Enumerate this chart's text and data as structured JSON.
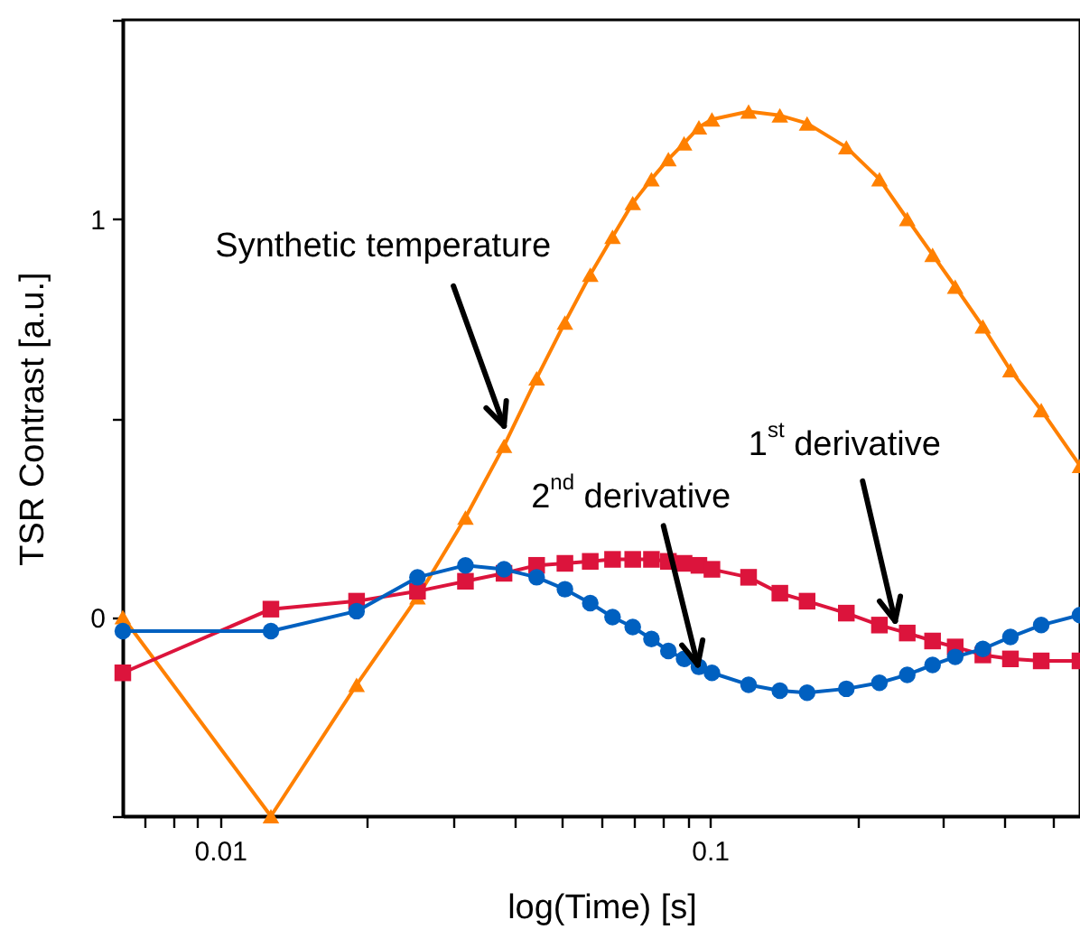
{
  "chart_data": {
    "type": "line",
    "xlabel": "log(Time) [s]",
    "ylabel": "TSR Contrast [a.u.]",
    "log": "x",
    "grid": false,
    "xlim": [
      0.00633,
      0.57
    ],
    "ylim": [
      -0.5,
      1.5
    ],
    "xticks": [
      {
        "value": 0.007,
        "label": null
      },
      {
        "value": 0.008,
        "label": null
      },
      {
        "value": 0.009,
        "label": null
      },
      0.01,
      {
        "value": 0.02,
        "label": null
      },
      {
        "value": 0.03,
        "label": null
      },
      {
        "value": 0.04,
        "label": null
      },
      {
        "value": 0.05,
        "label": null
      },
      {
        "value": 0.06,
        "label": null
      },
      {
        "value": 0.07,
        "label": null
      },
      {
        "value": 0.08,
        "label": null
      },
      {
        "value": 0.09,
        "label": null
      },
      0.1,
      {
        "value": 0.2,
        "label": null
      },
      {
        "value": 0.3,
        "label": null
      },
      {
        "value": 0.4,
        "label": null
      },
      {
        "value": 0.5,
        "label": null
      }
    ],
    "yticks": [
      {
        "value": -0.5,
        "label": null
      },
      0,
      {
        "value": 0.5,
        "label": null
      },
      1,
      {
        "value": 1.5,
        "label": null
      }
    ],
    "x": [
      0.00633,
      0.0127,
      0.019,
      0.0253,
      0.0317,
      0.038,
      0.0443,
      0.0506,
      0.057,
      0.0633,
      0.0696,
      0.076,
      0.0823,
      0.0886,
      0.095,
      0.101,
      0.12,
      0.139,
      0.158,
      0.19,
      0.222,
      0.253,
      0.285,
      0.317,
      0.361,
      0.411,
      0.475,
      0.57
    ],
    "series": [
      {
        "color": "#ff8000",
        "marker": "triangle",
        "line_style": "solid",
        "values": [
          0,
          -0.5,
          -0.17,
          0.05,
          0.25,
          0.43,
          0.6,
          0.74,
          0.86,
          0.955,
          1.04,
          1.1,
          1.15,
          1.19,
          1.23,
          1.25,
          1.27,
          1.26,
          1.24,
          1.18,
          1.1,
          1.0,
          0.91,
          0.83,
          0.73,
          0.62,
          0.52,
          0.38
        ]
      },
      {
        "color": "#dc143c",
        "marker": "square",
        "line_style": "solid",
        "values": [
          -0.14,
          0.02,
          0.04,
          0.065,
          0.09,
          0.11,
          0.13,
          0.135,
          0.14,
          0.145,
          0.145,
          0.145,
          0.14,
          0.135,
          0.13,
          0.12,
          0.1,
          0.06,
          0.04,
          0.01,
          -0.02,
          -0.04,
          -0.06,
          -0.075,
          -0.095,
          -0.105,
          -0.11,
          -0.11
        ]
      },
      {
        "color": "#0060c0",
        "marker": "circle",
        "line_style": "solid",
        "values": [
          -0.035,
          -0.035,
          0.015,
          0.1,
          0.13,
          0.12,
          0.1,
          0.07,
          0.035,
          0,
          -0.025,
          -0.055,
          -0.085,
          -0.105,
          -0.125,
          -0.14,
          -0.17,
          -0.185,
          -0.19,
          -0.18,
          -0.165,
          -0.145,
          -0.12,
          -0.1,
          -0.08,
          -0.05,
          -0.02,
          0.005
        ]
      }
    ],
    "annotations": [
      {
        "text": "Synthetic temperature",
        "x": 0.038,
        "y": 0.48
      },
      {
        "text": "1$^{st}$ derivative",
        "x": 0.239,
        "y": -0.01
      },
      {
        "text": "2$^{nd}$ derivative",
        "x": 0.0945,
        "y": -0.12
      }
    ]
  }
}
